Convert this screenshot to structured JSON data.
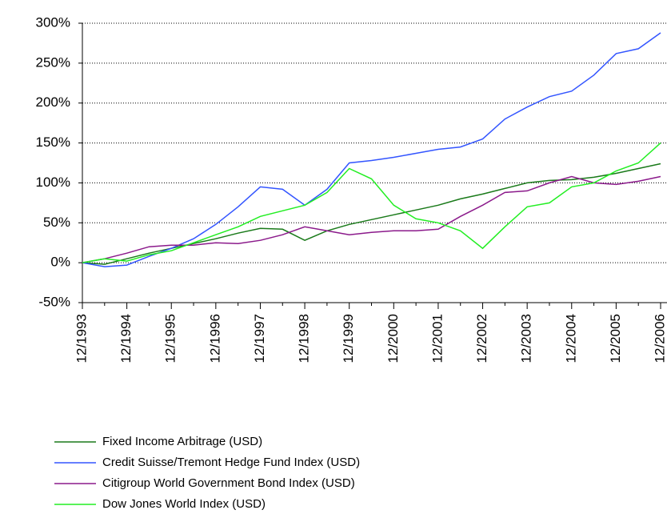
{
  "chart_data": {
    "type": "line",
    "categories": [
      "12/1993",
      null,
      "12/1994",
      null,
      "12/1995",
      null,
      "12/1996",
      null,
      "12/1997",
      null,
      "12/1998",
      null,
      "12/1999",
      null,
      "12/2000",
      null,
      "12/2001",
      null,
      "12/2002",
      null,
      "12/2003",
      null,
      "12/2004",
      null,
      "12/2005",
      null,
      "12/2006"
    ],
    "series": [
      {
        "name": "Fixed Income Arbitrage (USD)",
        "color": "#1a7a1a",
        "values": [
          0,
          -2,
          5,
          12,
          18,
          24,
          30,
          37,
          43,
          42,
          28,
          40,
          48,
          54,
          60,
          66,
          72,
          80,
          86,
          93,
          100,
          103,
          104,
          107,
          112,
          118,
          124
        ]
      },
      {
        "name": "Credit Suisse/Tremont Hedge Fund Index (USD)",
        "color": "#3355ff",
        "values": [
          0,
          -5,
          -3,
          8,
          18,
          30,
          48,
          70,
          95,
          92,
          72,
          92,
          125,
          128,
          132,
          137,
          142,
          145,
          155,
          180,
          195,
          208,
          215,
          235,
          262,
          268,
          288
        ]
      },
      {
        "name": "Citigroup World Government Bond Index (USD)",
        "color": "#8b1a8b",
        "values": [
          0,
          5,
          12,
          20,
          22,
          22,
          25,
          24,
          28,
          35,
          45,
          40,
          35,
          38,
          40,
          40,
          42,
          58,
          72,
          88,
          90,
          100,
          108,
          100,
          98,
          102,
          108
        ]
      },
      {
        "name": "Dow Jones World Index (USD)",
        "color": "#22ee22",
        "values": [
          0,
          5,
          2,
          10,
          15,
          25,
          35,
          45,
          58,
          65,
          72,
          88,
          118,
          105,
          72,
          55,
          50,
          40,
          18,
          45,
          70,
          75,
          95,
          100,
          115,
          125,
          150
        ]
      }
    ],
    "ylim": [
      -50,
      300
    ],
    "yticks": [
      {
        "value": -50,
        "label": "-50%"
      },
      {
        "value": 0,
        "label": "0%"
      },
      {
        "value": 50,
        "label": "50%"
      },
      {
        "value": 100,
        "label": "100%"
      },
      {
        "value": 150,
        "label": "150%"
      },
      {
        "value": 200,
        "label": "200%"
      },
      {
        "value": 250,
        "label": "250%"
      },
      {
        "value": 300,
        "label": "300%"
      }
    ],
    "grid": true,
    "legend": "bottom"
  }
}
